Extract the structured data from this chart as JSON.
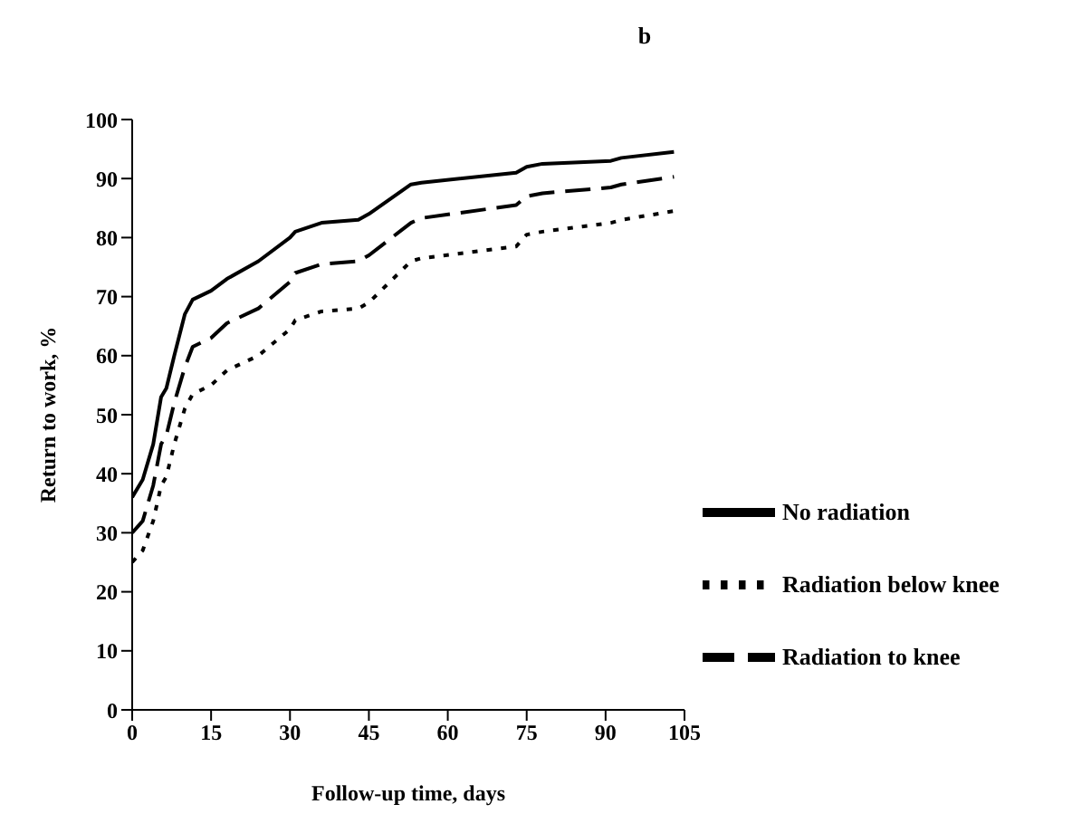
{
  "chart_data": {
    "type": "line",
    "title": "b",
    "xlabel": "Follow-up time, days",
    "ylabel": "Return to work, %",
    "xlim": [
      0,
      105
    ],
    "xticks": [
      0,
      15,
      30,
      45,
      60,
      75,
      90,
      105
    ],
    "ylim": [
      0,
      100
    ],
    "yticks": [
      0,
      10,
      20,
      30,
      40,
      50,
      60,
      70,
      80,
      90,
      100
    ],
    "grid": false,
    "legend": "right",
    "marker": "none",
    "series": [
      {
        "name": "No radiation",
        "color": "#000000",
        "line_style": "solid",
        "x": [
          0,
          2,
          4,
          5.5,
          6.5,
          8,
          10,
          11.5,
          15,
          18,
          24,
          30,
          31,
          36,
          43,
          45,
          53,
          55,
          73,
          75,
          78,
          91,
          93,
          103
        ],
        "values": [
          36,
          39,
          45,
          53,
          54.5,
          60,
          67,
          69.5,
          71,
          73,
          76,
          80,
          81,
          82.5,
          83,
          84,
          89,
          89.3,
          91,
          92,
          92.5,
          93,
          93.5,
          94.5
        ]
      },
      {
        "name": "Radiation to knee",
        "color": "#000000",
        "line_style": "dashed",
        "x": [
          0,
          2,
          4,
          5.5,
          6.5,
          8,
          10,
          11.5,
          15,
          18,
          24,
          30,
          31,
          36,
          43,
          45,
          53,
          55,
          73,
          75,
          78,
          91,
          93,
          103
        ],
        "values": [
          30,
          32,
          38,
          45,
          46.5,
          52,
          58,
          61.5,
          63,
          65.5,
          68,
          72.5,
          74,
          75.5,
          76,
          77,
          82.5,
          83.3,
          85.5,
          87,
          87.5,
          88.5,
          89,
          90.3
        ]
      },
      {
        "name": "Radiation below knee",
        "color": "#000000",
        "line_style": "dotted",
        "x": [
          0,
          2,
          4,
          5.5,
          6.5,
          8,
          10,
          11.5,
          15,
          18,
          24,
          30,
          31,
          36,
          43,
          45,
          53,
          55,
          73,
          75,
          78,
          91,
          93,
          103
        ],
        "values": [
          25,
          27,
          32,
          38,
          39.5,
          45,
          51,
          53.5,
          55,
          57.5,
          60,
          64.5,
          66,
          67.5,
          68,
          69,
          76,
          76.5,
          78.5,
          80.5,
          81,
          82.5,
          83,
          84.5
        ]
      }
    ]
  }
}
